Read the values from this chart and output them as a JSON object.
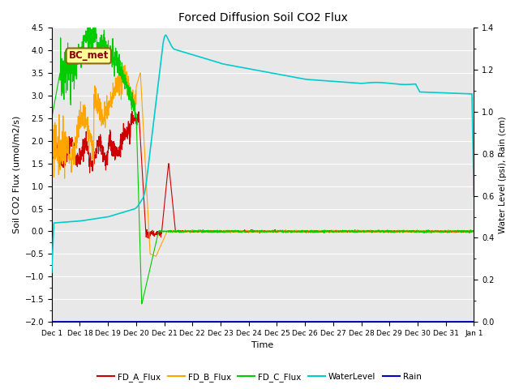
{
  "title": "Forced Diffusion Soil CO2 Flux",
  "xlabel": "Time",
  "ylabel_left": "Soil CO2 Flux (umol/m2/s)",
  "ylabel_right": "Water Level (psi), Rain (cm)",
  "ylim_left": [
    -2.0,
    4.5
  ],
  "ylim_right": [
    0.0,
    1.4
  ],
  "fig_facecolor": "#ffffff",
  "plot_bg_color": "#e8e8e8",
  "grid_color": "#ffffff",
  "annotation_label": "BC_met",
  "annotation_color": "#8B0000",
  "annotation_bg": "#FFFF99",
  "annotation_border": "#8B6914",
  "colors": {
    "FD_A_Flux": "#cc0000",
    "FD_B_Flux": "#ffa500",
    "FD_C_Flux": "#00cc00",
    "WaterLevel": "#00cccc",
    "Rain": "#0000cc"
  },
  "x_ticks": [
    "Dec 1",
    "Dec 18",
    "Dec 19",
    "Dec 20",
    "Dec 21",
    "Dec 22",
    "Dec 23",
    "Dec 24",
    "Dec 25",
    "Dec 26",
    "Dec 27",
    "Dec 28",
    "Dec 29",
    "Dec 30",
    "Dec 31",
    "Jan 1"
  ],
  "n_points": 2000
}
